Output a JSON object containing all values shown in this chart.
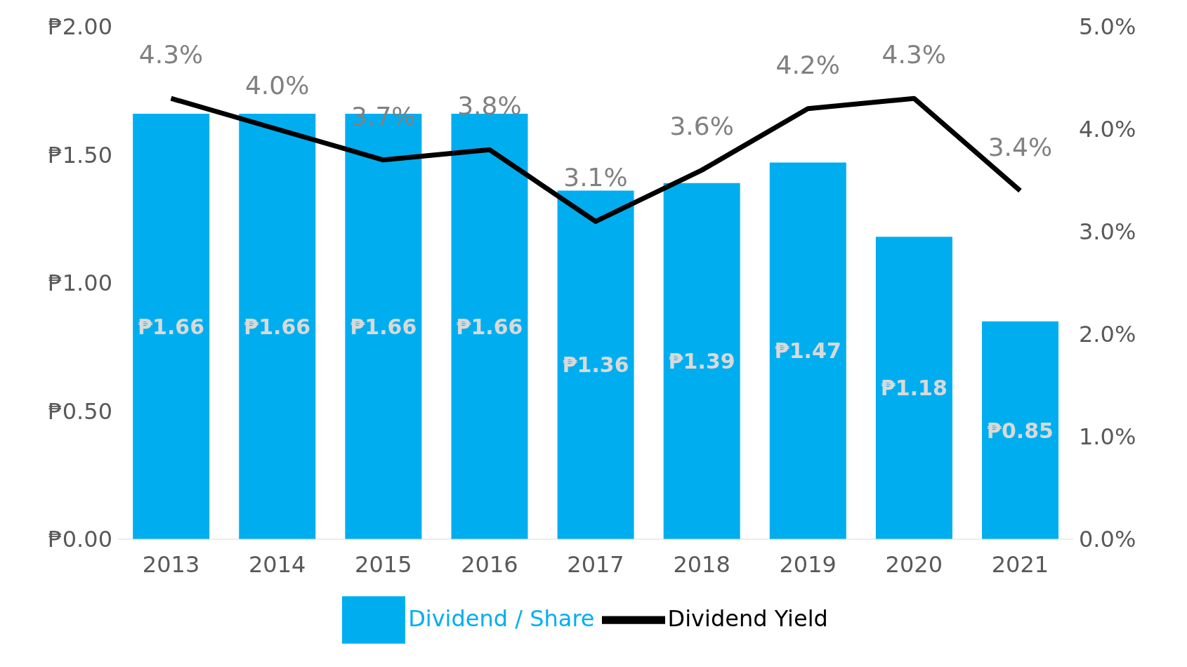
{
  "chart_data": {
    "type": "bar",
    "categories": [
      "2013",
      "2014",
      "2015",
      "2016",
      "2017",
      "2018",
      "2019",
      "2020",
      "2021"
    ],
    "series": [
      {
        "name": "Dividend / Share",
        "color": "#00aeef",
        "values": [
          1.66,
          1.66,
          1.66,
          1.66,
          1.36,
          1.39,
          1.47,
          1.18,
          0.85
        ],
        "value_labels": [
          "₱1.66",
          "₱1.66",
          "₱1.66",
          "₱1.66",
          "₱1.36",
          "₱1.39",
          "₱1.47",
          "₱1.18",
          "₱0.85"
        ]
      },
      {
        "name": "Dividend Yield",
        "type": "line",
        "axis": "y2",
        "color": "#000000",
        "values": [
          4.3,
          4.0,
          3.7,
          3.8,
          3.1,
          3.6,
          4.2,
          4.3,
          3.4
        ],
        "value_labels": [
          "4.3%",
          "4.0%",
          "3.7%",
          "3.8%",
          "3.1%",
          "3.6%",
          "4.2%",
          "4.3%",
          "3.4%"
        ]
      }
    ],
    "ylim": [
      0,
      2
    ],
    "yticks": [
      {
        "value": 0,
        "label": "₱0.00"
      },
      {
        "value": 0.5,
        "label": "₱0.50"
      },
      {
        "value": 1,
        "label": "₱1.00"
      },
      {
        "value": 1.5,
        "label": "₱1.50"
      },
      {
        "value": 2,
        "label": "₱2.00"
      }
    ],
    "y2lim": [
      0,
      5
    ],
    "y2ticks": [
      {
        "value": 0,
        "label": "0.0%"
      },
      {
        "value": 1,
        "label": "1.0%"
      },
      {
        "value": 2,
        "label": "2.0%"
      },
      {
        "value": 3,
        "label": "3.0%"
      },
      {
        "value": 4,
        "label": "4.0%"
      },
      {
        "value": 5,
        "label": "5.0%"
      }
    ],
    "legend": "bottom"
  }
}
